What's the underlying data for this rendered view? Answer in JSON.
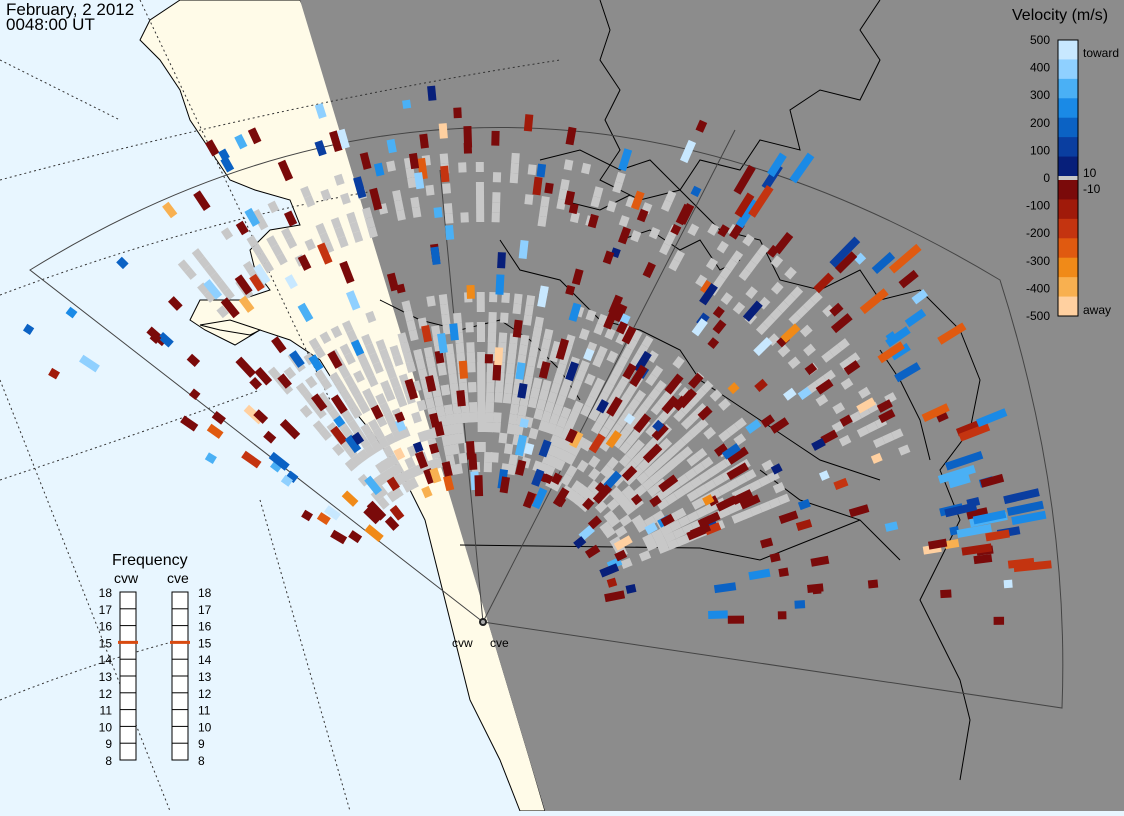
{
  "header": {
    "date": "February, 2 2012",
    "time": "0048:00 UT"
  },
  "colors": {
    "ocean_day": "#e8f6ff",
    "land_day": "#fffbe8",
    "night": "#8c8c8c",
    "ground_scatter": "#c8c8c8",
    "coast": "#000000"
  },
  "velocity_scale": {
    "title": "Velocity (m/s)",
    "toward_label": "toward",
    "away_label": "away",
    "ticks": [
      "500",
      "400",
      "300",
      "200",
      "100",
      "0",
      "-100",
      "-200",
      "-300",
      "-400",
      "-500"
    ],
    "inner_ticks": [
      "10",
      "-10"
    ],
    "colors_toward_top_to_bottom": [
      "#c8e8ff",
      "#8fd0ff",
      "#4ab0f5",
      "#1a8ae6",
      "#0b62c4",
      "#0a3ea0",
      "#071f7a"
    ],
    "colors_away_top_to_bottom": [
      "#7a0a0a",
      "#a01a0a",
      "#c43410",
      "#e05a10",
      "#f08a18",
      "#f8b050",
      "#ffd0a0"
    ]
  },
  "frequency_panel": {
    "title": "Frequency",
    "radars": [
      {
        "name": "cvw",
        "freq_mhz": 15
      },
      {
        "name": "cve",
        "freq_mhz": 15
      }
    ],
    "scale_ticks": [
      "18",
      "17",
      "16",
      "15",
      "14",
      "13",
      "12",
      "11",
      "10",
      "9",
      "8"
    ],
    "marker_color": "#d84a10"
  },
  "radar_sites": {
    "west_label": "cvw",
    "east_label": "cve"
  }
}
